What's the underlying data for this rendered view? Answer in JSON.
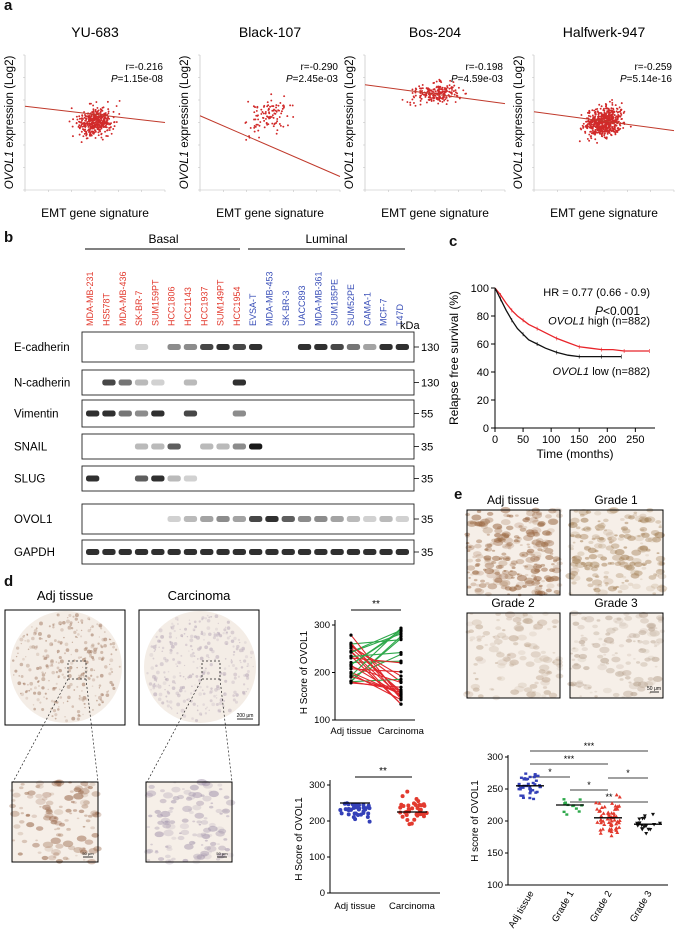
{
  "panel_letters": {
    "a": "a",
    "b": "b",
    "c": "c",
    "d": "d",
    "e": "e"
  },
  "panel_a": {
    "ylabel_italic": "OVOL1",
    "ylabel_rest": " expression (Log2)",
    "xlabel": "EMT gene signature",
    "plots": [
      {
        "title": "YU-683",
        "r": "r=-0.216",
        "p_label": "P",
        "p_value": "=1.15e-08",
        "seed": 11,
        "n": 420,
        "dense": true
      },
      {
        "title": "Black-107",
        "r": "r=-0.290",
        "p_label": "P",
        "p_value": "=2.45e-03",
        "seed": 23,
        "n": 107,
        "dense": false
      },
      {
        "title": "Bos-204",
        "r": "r=-0.198",
        "p_label": "P",
        "p_value": "=4.59e-03",
        "seed": 37,
        "n": 204,
        "dense": false
      },
      {
        "title": "Halfwerk-947",
        "r": "r=-0.259",
        "p_label": "P",
        "p_value": "=5.14e-16",
        "seed": 51,
        "n": 800,
        "dense": true
      }
    ]
  },
  "panel_b": {
    "group_basal": "Basal",
    "group_luminal": "Luminal",
    "kda": "kDa",
    "basal_color": "#e23a2e",
    "luminal_color": "#3a4fb8",
    "cell_lines": [
      {
        "name": "MDA-MB-231",
        "group": "basal"
      },
      {
        "name": "HS578T",
        "group": "basal"
      },
      {
        "name": "MDA-MB-436",
        "group": "basal"
      },
      {
        "name": "SK-BR-7",
        "group": "basal"
      },
      {
        "name": "SUM159PT",
        "group": "basal"
      },
      {
        "name": "HCC1806",
        "group": "basal"
      },
      {
        "name": "HCC1143",
        "group": "basal"
      },
      {
        "name": "HCC1937",
        "group": "basal"
      },
      {
        "name": "SUM149PT",
        "group": "basal"
      },
      {
        "name": "HCC1954",
        "group": "basal"
      },
      {
        "name": "EVSA-T",
        "group": "luminal"
      },
      {
        "name": "MDA-MB-453",
        "group": "luminal"
      },
      {
        "name": "SK-BR-3",
        "group": "luminal"
      },
      {
        "name": "UACC893",
        "group": "luminal"
      },
      {
        "name": "MDA-MB-361",
        "group": "luminal"
      },
      {
        "name": "SUM185PE",
        "group": "luminal"
      },
      {
        "name": "SUM52PE",
        "group": "luminal"
      },
      {
        "name": "CAMA-1",
        "group": "luminal"
      },
      {
        "name": "MCF-7",
        "group": "luminal"
      },
      {
        "name": "T47D",
        "group": "luminal"
      }
    ],
    "blots": [
      {
        "name": "E-cadherin",
        "kda": "130",
        "bands": [
          0,
          0,
          0,
          0.2,
          0,
          0.5,
          0.5,
          0.8,
          0.9,
          0.8,
          0.9,
          0,
          0,
          0.9,
          0.9,
          0.8,
          0.6,
          0.4,
          0.9,
          0.9
        ]
      },
      {
        "name": "N-cadherin",
        "kda": "130",
        "bands": [
          0,
          0.8,
          0.6,
          0.3,
          0.2,
          0,
          0.3,
          0,
          0,
          0.9,
          0,
          0,
          0,
          0,
          0,
          0,
          0,
          0,
          0,
          0
        ]
      },
      {
        "name": "Vimentin",
        "kda": "55",
        "bands": [
          0.9,
          0.9,
          0.6,
          0.5,
          0.9,
          0,
          0.8,
          0,
          0,
          0.5,
          0,
          0,
          0,
          0,
          0,
          0,
          0,
          0,
          0,
          0
        ]
      },
      {
        "name": "SNAIL",
        "kda": "35",
        "bands": [
          0,
          0,
          0,
          0.3,
          0.3,
          0.7,
          0,
          0.3,
          0.3,
          0.5,
          1,
          0,
          0,
          0,
          0,
          0,
          0,
          0,
          0,
          0
        ]
      },
      {
        "name": "SLUG",
        "kda": "35",
        "bands": [
          0.9,
          0,
          0,
          0.7,
          0.9,
          0.3,
          0.2,
          0,
          0,
          0,
          0,
          0,
          0,
          0,
          0,
          0,
          0,
          0,
          0,
          0
        ]
      },
      {
        "name": "OVOL1",
        "kda": "35",
        "bands": [
          0,
          0,
          0,
          0,
          0,
          0.2,
          0.3,
          0.4,
          0.5,
          0.4,
          0.8,
          0.9,
          0.7,
          0.5,
          0.5,
          0.4,
          0.3,
          0.2,
          0.3,
          0.2
        ]
      },
      {
        "name": "GAPDH",
        "kda": "35",
        "bands": [
          0.9,
          0.9,
          0.9,
          0.9,
          0.9,
          0.9,
          0.9,
          0.9,
          0.9,
          0.9,
          0.9,
          0.9,
          0.9,
          0.9,
          0.9,
          0.9,
          0.9,
          0.9,
          0.9,
          0.9
        ]
      }
    ]
  },
  "panel_c": {
    "ylabel": "Relapse free survival  (%)",
    "xlabel": "Time (months)",
    "hr": "HR = 0.77 (0.66 - 0.9)",
    "p_label": "P",
    "p_value": "<0.001",
    "high_label_italic": "OVOL1",
    "high_label_rest": " high (n=882)",
    "low_label_italic": "OVOL1",
    "low_label_rest": " low (n=882)",
    "high_color": "#e8242a",
    "low_color": "#111111",
    "x_ticks": [
      0,
      50,
      100,
      150,
      200,
      250
    ],
    "y_ticks": [
      0,
      20,
      40,
      60,
      80,
      100
    ],
    "xlim": [
      0,
      285
    ],
    "ylim": [
      0,
      100
    ]
  },
  "panel_d": {
    "adj_label": "Adj tissue",
    "carcinoma_label": "Carcinoma",
    "scale_large": "200 μm",
    "scale_small": "50 μm",
    "paired_ylabel": "H Score of OVOL1",
    "paired_sig": "**",
    "paired_x": [
      "Adj tissue",
      "Carcinoma"
    ],
    "paired_y_ticks": [
      100,
      200,
      300
    ],
    "dot_ylabel": "H Score of OVOL1",
    "dot_sig": "**",
    "dot_x": [
      "Adj tissue",
      "Carcinoma"
    ],
    "dot_y_ticks": [
      0,
      100,
      200,
      300
    ],
    "adj_color": "#3440b8",
    "car_color": "#e23a2e"
  },
  "panel_e": {
    "images": [
      "Adj tissue",
      "Grade 1",
      "Grade 2",
      "Grade 3"
    ],
    "scale": "50 μm",
    "ylabel": "H score of OVOL1",
    "y_ticks": [
      100,
      150,
      200,
      250,
      300
    ],
    "groups": [
      "Adj tissue",
      "Grade 1",
      "Grade 2",
      "Grade 3"
    ],
    "colors": [
      "#3440b8",
      "#2da84a",
      "#e23a2e",
      "#111111"
    ],
    "sig": [
      "*",
      "***",
      "***",
      "*",
      "*",
      "**"
    ]
  }
}
